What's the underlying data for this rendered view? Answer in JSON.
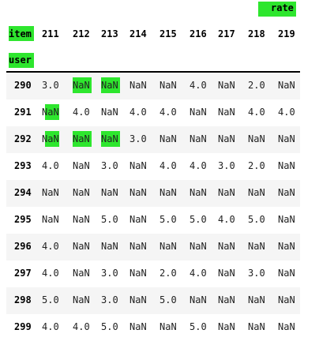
{
  "header": {
    "top_label": "rate",
    "columns_name": "item",
    "index_name": "user",
    "columns": [
      "211",
      "212",
      "213",
      "214",
      "215",
      "216",
      "217",
      "218",
      "219"
    ]
  },
  "rows": [
    {
      "user": "290",
      "values": [
        "3.0",
        "NaN",
        "NaN",
        "NaN",
        "NaN",
        "4.0",
        "NaN",
        "2.0",
        "NaN"
      ]
    },
    {
      "user": "291",
      "values": [
        "NaN",
        "4.0",
        "NaN",
        "4.0",
        "4.0",
        "NaN",
        "NaN",
        "4.0",
        "4.0"
      ]
    },
    {
      "user": "292",
      "values": [
        "NaN",
        "NaN",
        "NaN",
        "3.0",
        "NaN",
        "NaN",
        "NaN",
        "NaN",
        "NaN"
      ]
    },
    {
      "user": "293",
      "values": [
        "4.0",
        "NaN",
        "3.0",
        "NaN",
        "4.0",
        "4.0",
        "3.0",
        "2.0",
        "NaN"
      ]
    },
    {
      "user": "294",
      "values": [
        "NaN",
        "NaN",
        "NaN",
        "NaN",
        "NaN",
        "NaN",
        "NaN",
        "NaN",
        "NaN"
      ]
    },
    {
      "user": "295",
      "values": [
        "NaN",
        "NaN",
        "5.0",
        "NaN",
        "5.0",
        "5.0",
        "4.0",
        "5.0",
        "NaN"
      ]
    },
    {
      "user": "296",
      "values": [
        "4.0",
        "NaN",
        "NaN",
        "NaN",
        "NaN",
        "NaN",
        "NaN",
        "NaN",
        "NaN"
      ]
    },
    {
      "user": "297",
      "values": [
        "4.0",
        "NaN",
        "3.0",
        "NaN",
        "2.0",
        "4.0",
        "NaN",
        "3.0",
        "NaN"
      ]
    },
    {
      "user": "298",
      "values": [
        "5.0",
        "NaN",
        "3.0",
        "NaN",
        "5.0",
        "NaN",
        "NaN",
        "NaN",
        "NaN"
      ]
    },
    {
      "user": "299",
      "values": [
        "4.0",
        "4.0",
        "5.0",
        "NaN",
        "NaN",
        "5.0",
        "NaN",
        "NaN",
        "NaN"
      ]
    }
  ],
  "highlight_color": "#2ee62e"
}
